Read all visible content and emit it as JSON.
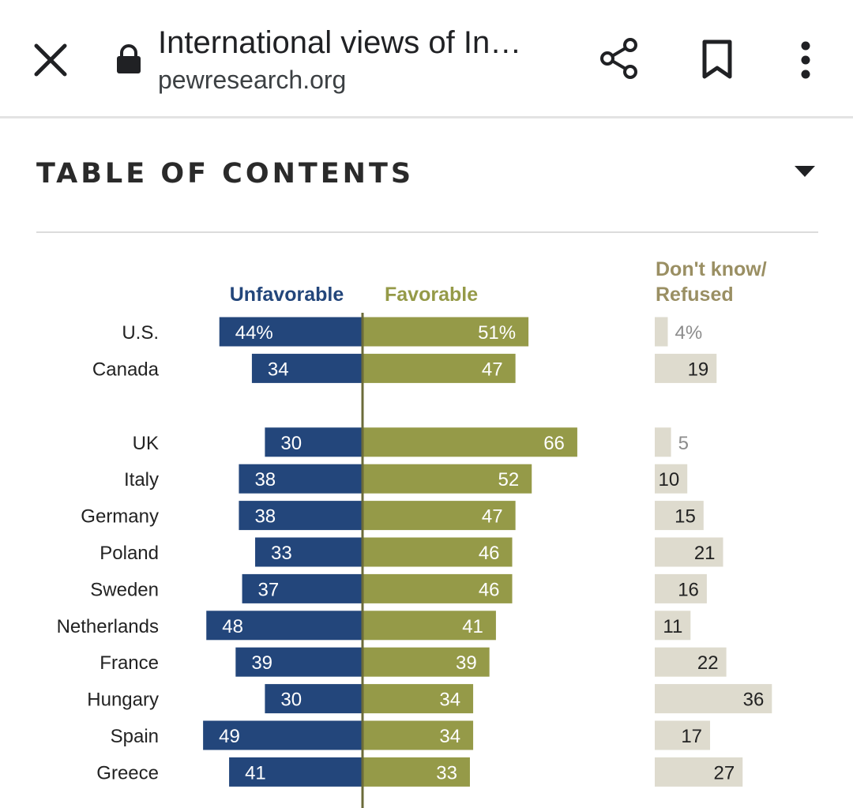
{
  "browser": {
    "title": "International views of In…",
    "domain": "pewresearch.org"
  },
  "toc": {
    "label": "TABLE OF CONTENTS"
  },
  "colors": {
    "unfavorable": "#23467b",
    "favorable": "#959a48",
    "dontknow": "#dedbce",
    "axis": "#6b6b3a",
    "dontknow_label": "#9a8f63"
  },
  "chart_data": {
    "type": "bar",
    "orientation": "horizontal-diverging",
    "legend": {
      "unfavorable": "Unfavorable",
      "favorable": "Favorable",
      "dontknow_line1": "Don't know/",
      "dontknow_line2": "Refused"
    },
    "categories": [
      "U.S.",
      "Canada",
      "UK",
      "Italy",
      "Germany",
      "Poland",
      "Sweden",
      "Netherlands",
      "France",
      "Hungary",
      "Spain",
      "Greece"
    ],
    "groups": [
      [
        "U.S.",
        "Canada"
      ],
      [
        "UK",
        "Italy",
        "Germany",
        "Poland",
        "Sweden",
        "Netherlands",
        "France",
        "Hungary",
        "Spain",
        "Greece"
      ]
    ],
    "series": [
      {
        "name": "Unfavorable",
        "values": [
          44,
          34,
          30,
          38,
          38,
          33,
          37,
          48,
          39,
          30,
          49,
          41
        ]
      },
      {
        "name": "Favorable",
        "values": [
          51,
          47,
          66,
          52,
          47,
          46,
          46,
          41,
          39,
          34,
          34,
          33
        ]
      },
      {
        "name": "Don't know/Refused",
        "values": [
          4,
          19,
          5,
          10,
          15,
          21,
          16,
          11,
          22,
          36,
          17,
          27
        ]
      }
    ],
    "labels": {
      "unfavorable": [
        "44%",
        "34",
        "30",
        "38",
        "38",
        "33",
        "37",
        "48",
        "39",
        "30",
        "49",
        "41"
      ],
      "favorable": [
        "51%",
        "47",
        "66",
        "52",
        "47",
        "46",
        "46",
        "41",
        "39",
        "34",
        "34",
        "33"
      ],
      "dontknow": [
        "4%",
        "19",
        "5",
        "10",
        "15",
        "21",
        "16",
        "11",
        "22",
        "36",
        "17",
        "27"
      ]
    },
    "unit": "%"
  }
}
